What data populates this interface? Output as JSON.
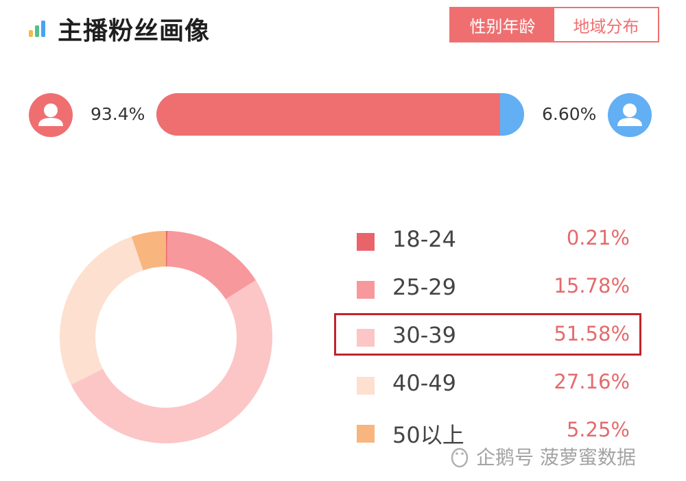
{
  "header": {
    "title": "主播粉丝画像",
    "icon": "bar-chart-icon"
  },
  "tabs": [
    {
      "label": "性别年龄",
      "active": true
    },
    {
      "label": "地域分布",
      "active": false
    }
  ],
  "gender": {
    "female_percent": "93.4%",
    "male_percent": "6.60%",
    "female_share": 0.934,
    "colors": {
      "female": "#ef6f70",
      "male": "#62aff4"
    }
  },
  "age": {
    "highlighted": "30-39",
    "items": [
      {
        "label": "18-24",
        "value": "0.21%",
        "share": 0.21,
        "color": "#e9646a"
      },
      {
        "label": "25-29",
        "value": "15.78%",
        "share": 15.78,
        "color": "#f7989c"
      },
      {
        "label": "30-39",
        "value": "51.58%",
        "share": 51.58,
        "color": "#fcc6c6"
      },
      {
        "label": "40-49",
        "value": "27.16%",
        "share": 27.16,
        "color": "#fde0cf"
      },
      {
        "label": "50以上",
        "value": "5.25%",
        "share": 5.25,
        "color": "#f8b57e"
      }
    ]
  },
  "watermark": {
    "text": "企鹅号 菠萝蜜数据"
  }
}
